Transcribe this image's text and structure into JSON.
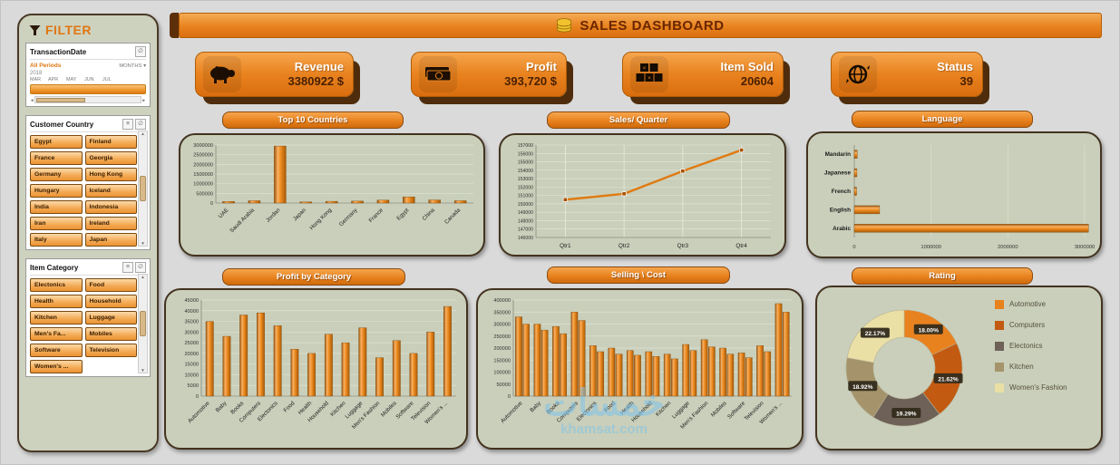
{
  "header": {
    "title": "SALES DASHBOARD"
  },
  "filter": {
    "title": "FILTER",
    "transaction_date": {
      "title": "TransactionDate",
      "range_label": "All Periods",
      "granularity": "MONTHS",
      "year": "2018",
      "months": [
        "MAR",
        "APR",
        "MAY",
        "JUN",
        "JUL"
      ]
    },
    "customer_country": {
      "title": "Customer Country",
      "items": [
        "Egypt",
        "Finland",
        "France",
        "Georgia",
        "Germany",
        "Hong Kong",
        "Hungary",
        "Iceland",
        "India",
        "Indonesia",
        "Iran",
        "Ireland",
        "Italy",
        "Japan"
      ]
    },
    "item_category": {
      "title": "Item Category",
      "items": [
        "Electonics",
        "Food",
        "Health",
        "Household",
        "Kitchen",
        "Luggage",
        "Men's Fa...",
        "Mobiles",
        "Software",
        "Television",
        "Women's ..."
      ]
    }
  },
  "kpis": [
    {
      "label": "Revenue",
      "value": "3380922 $",
      "icon": "piggy-bank-icon"
    },
    {
      "label": "Profit",
      "value": "393,720 $",
      "icon": "cash-icon"
    },
    {
      "label": "Item Sold",
      "value": "20604",
      "icon": "boxes-icon"
    },
    {
      "label": "Status",
      "value": "39",
      "icon": "globe-icon"
    }
  ],
  "chart_data": [
    {
      "type": "bar",
      "title": "Top 10 Countries",
      "categories": [
        "UAE",
        "Saudi Arabia",
        "Jordan",
        "Japan",
        "Hong Kong",
        "Germany",
        "France",
        "Egypt",
        "China",
        "Canada"
      ],
      "values": [
        80000,
        120000,
        2950000,
        60000,
        90000,
        100000,
        150000,
        320000,
        160000,
        120000
      ],
      "ylim": [
        0,
        3000000
      ],
      "ytick": 500000,
      "xlabel": "",
      "ylabel": ""
    },
    {
      "type": "line",
      "title": "Sales/ Quarter",
      "categories": [
        "Qtr1",
        "Qtr2",
        "Qtr3",
        "Qtr4"
      ],
      "values": [
        150500,
        151200,
        153900,
        156400
      ],
      "ylim": [
        146000,
        157000
      ],
      "ytick": 1000,
      "xlabel": "",
      "ylabel": ""
    },
    {
      "type": "hbar",
      "title": "Language",
      "categories": [
        "Mandarin",
        "Japanese",
        "French",
        "English",
        "Arabic"
      ],
      "values": [
        40000,
        35000,
        30000,
        330000,
        3050000
      ],
      "xlim": [
        0,
        3000000
      ],
      "xtick": 1000000,
      "xlabel": "",
      "ylabel": ""
    },
    {
      "type": "bar",
      "title": "Profit by Category",
      "categories": [
        "Automotive",
        "Baby",
        "Books",
        "Computers",
        "Electonics",
        "Food",
        "Health",
        "Household",
        "Kitchen",
        "Luggage",
        "Men's Fashion",
        "Mobiles",
        "Software",
        "Television",
        "Women's ..."
      ],
      "values": [
        35000,
        28000,
        38000,
        39000,
        33000,
        22000,
        20000,
        29000,
        25000,
        32000,
        18000,
        26000,
        20000,
        30000,
        42000
      ],
      "ylim": [
        0,
        45000
      ],
      "ytick": 5000,
      "xlabel": "",
      "ylabel": ""
    },
    {
      "type": "bar",
      "title": "Selling \\ Cost",
      "categories": [
        "Automotive",
        "Baby",
        "Books",
        "Computers",
        "Electonics",
        "Food",
        "Health",
        "Household",
        "Kitchen",
        "Luggage",
        "Men's Fashion",
        "Mobiles",
        "Software",
        "Television",
        "Women's ..."
      ],
      "series": [
        {
          "name": "Selling",
          "values": [
            330000,
            300000,
            290000,
            350000,
            210000,
            200000,
            190000,
            185000,
            175000,
            215000,
            235000,
            200000,
            180000,
            210000,
            385000
          ]
        },
        {
          "name": "Cost",
          "values": [
            300000,
            275000,
            260000,
            315000,
            185000,
            175000,
            170000,
            165000,
            155000,
            190000,
            205000,
            175000,
            160000,
            185000,
            350000
          ]
        }
      ],
      "ylim": [
        0,
        400000
      ],
      "ytick": 50000,
      "xlabel": "",
      "ylabel": ""
    },
    {
      "type": "donut",
      "title": "Rating",
      "labels": [
        "Automotive",
        "Computers",
        "Electonics",
        "Kitchen",
        "Women's Fashion"
      ],
      "values": [
        18.0,
        21.62,
        19.29,
        18.92,
        22.17
      ],
      "value_labels": [
        "18.00%",
        "21.62%",
        "19.29%",
        "18.92%",
        "22.17%"
      ],
      "colors": [
        "#E8821E",
        "#C25A11",
        "#6E6157",
        "#A5946B",
        "#EADFA5"
      ],
      "legend_position": "right"
    }
  ],
  "watermark": {
    "line1": "خمسات",
    "line2": "khamsat.com"
  }
}
